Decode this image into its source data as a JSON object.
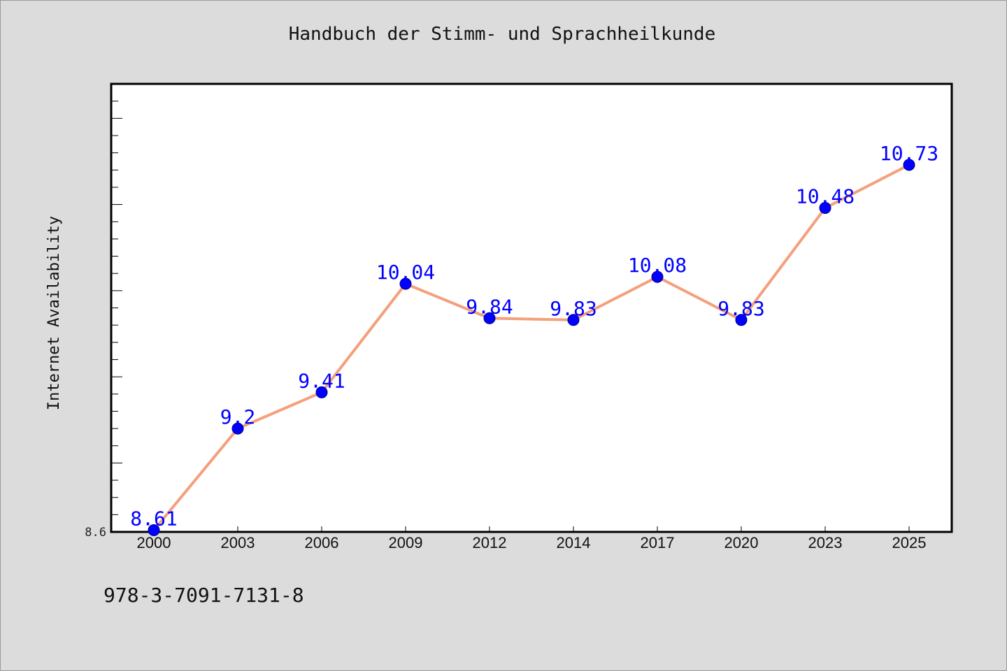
{
  "title": "Handbuch der Stimm- und Sprachheilkunde",
  "footer_text": "978-3-7091-7131-8",
  "chart_data": {
    "type": "line",
    "title": "Handbuch der Stimm- und Sprachheilkunde",
    "xlabel": "",
    "ylabel": "Internet Availability",
    "categories": [
      "2000",
      "2003",
      "2006",
      "2009",
      "2012",
      "2014",
      "2017",
      "2020",
      "2023",
      "2025"
    ],
    "series": [
      {
        "values": [
          8.61,
          9.2,
          9.41,
          10.04,
          9.84,
          9.83,
          10.08,
          9.83,
          10.48,
          10.73
        ]
      }
    ],
    "data_labels": [
      "8.61",
      "9.2",
      "9.41",
      "10.04",
      "9.84",
      "9.83",
      "10.08",
      "9.83",
      "10.48",
      "10.73"
    ],
    "ylim": [
      8.6,
      11.2
    ],
    "y_tick_labels": [
      "8.6"
    ],
    "grid": false,
    "colors": {
      "line": "#f4a07c",
      "marker": "#0000ff",
      "label": "#0000ff",
      "background": "#dcdcdc",
      "plot_background": "#ffffff"
    }
  }
}
